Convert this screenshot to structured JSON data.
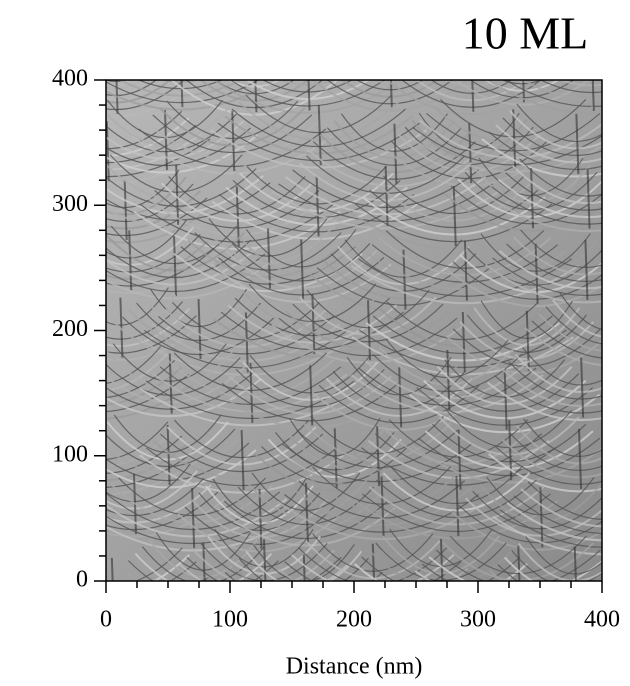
{
  "chart_data": {
    "type": "image",
    "title": "10 ML",
    "x_label": "Distance (nm)",
    "xlim": [
      0,
      400
    ],
    "xticks": [
      0,
      100,
      200,
      300,
      400
    ],
    "ylim": [
      0,
      400
    ],
    "yticks": [
      0,
      100,
      200,
      300,
      400
    ],
    "xminorticks": [
      25,
      50,
      75,
      125,
      150,
      175,
      225,
      250,
      275,
      325,
      350,
      375
    ],
    "yminorticks": [
      20,
      40,
      60,
      80,
      120,
      140,
      160,
      180,
      220,
      240,
      260,
      280,
      320,
      340,
      360,
      380
    ]
  }
}
